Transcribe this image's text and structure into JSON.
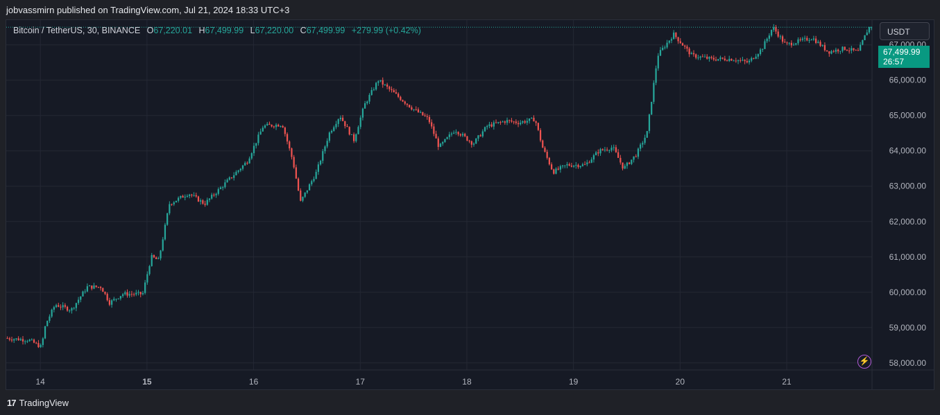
{
  "header": {
    "published_text": "jobvassmirn published on TradingView.com, Jul 21, 2024 18:33 UTC+3"
  },
  "legend": {
    "symbol": "Bitcoin / TetherUS, 30, BINANCE",
    "open_label": "O",
    "open": "67,220.01",
    "high_label": "H",
    "high": "67,499.99",
    "low_label": "L",
    "low": "67,220.00",
    "close_label": "C",
    "close": "67,499.99",
    "change": "+279.99 (+0.42%)"
  },
  "currency_button": "USDT",
  "price_tag": {
    "price": "67,499.99",
    "countdown": "26:57"
  },
  "footer": {
    "brand": "TradingView",
    "logo_glyph": "17"
  },
  "colors": {
    "up": "#26a69a",
    "down": "#ef5350",
    "background": "#161a25",
    "grid": "#242834",
    "price_tag": "#089981"
  },
  "icons": {
    "alert": "lightning-bolt-icon",
    "logo": "tradingview-logo-icon"
  },
  "chart_data": {
    "type": "candlestick",
    "title": "Bitcoin / TetherUS, 30, BINANCE",
    "ylim": [
      57800,
      67700
    ],
    "xlim": [
      13.68,
      21.8
    ],
    "y_ticks": [
      58000,
      59000,
      60000,
      61000,
      62000,
      63000,
      64000,
      65000,
      66000,
      67000
    ],
    "y_tick_labels": [
      "58,000.00",
      "59,000.00",
      "60,000.00",
      "61,000.00",
      "62,000.00",
      "63,000.00",
      "64,000.00",
      "65,000.00",
      "66,000.00",
      "67,000.00"
    ],
    "x_ticks": [
      14,
      15,
      16,
      17,
      18,
      19,
      20,
      21
    ],
    "x_tick_labels": [
      "14",
      "15",
      "16",
      "17",
      "18",
      "19",
      "20",
      "21"
    ],
    "bold_x_tick": "15",
    "last_price": 67499.99,
    "price_path": [
      [
        13.68,
        58700
      ],
      [
        13.9,
        58650
      ],
      [
        14.02,
        58450
      ],
      [
        14.06,
        59100
      ],
      [
        14.15,
        59650
      ],
      [
        14.3,
        59500
      ],
      [
        14.45,
        60150
      ],
      [
        14.58,
        60150
      ],
      [
        14.66,
        59700
      ],
      [
        14.78,
        59950
      ],
      [
        14.97,
        59950
      ],
      [
        15.05,
        61000
      ],
      [
        15.12,
        60900
      ],
      [
        15.22,
        62500
      ],
      [
        15.4,
        62800
      ],
      [
        15.55,
        62500
      ],
      [
        15.7,
        62950
      ],
      [
        15.95,
        63700
      ],
      [
        16.1,
        64700
      ],
      [
        16.28,
        64750
      ],
      [
        16.38,
        63700
      ],
      [
        16.45,
        62550
      ],
      [
        16.6,
        63400
      ],
      [
        16.72,
        64500
      ],
      [
        16.82,
        65000
      ],
      [
        16.95,
        64300
      ],
      [
        17.05,
        65300
      ],
      [
        17.18,
        66000
      ],
      [
        17.3,
        65700
      ],
      [
        17.5,
        65200
      ],
      [
        17.65,
        64900
      ],
      [
        17.75,
        64100
      ],
      [
        17.9,
        64600
      ],
      [
        18.07,
        64200
      ],
      [
        18.2,
        64700
      ],
      [
        18.38,
        64850
      ],
      [
        18.5,
        64800
      ],
      [
        18.65,
        64900
      ],
      [
        18.72,
        64100
      ],
      [
        18.82,
        63400
      ],
      [
        18.95,
        63600
      ],
      [
        19.12,
        63600
      ],
      [
        19.25,
        64000
      ],
      [
        19.38,
        64100
      ],
      [
        19.48,
        63500
      ],
      [
        19.6,
        63900
      ],
      [
        19.7,
        64500
      ],
      [
        19.8,
        66700
      ],
      [
        19.95,
        67300
      ],
      [
        20.12,
        66700
      ],
      [
        20.3,
        66600
      ],
      [
        20.5,
        66600
      ],
      [
        20.65,
        66500
      ],
      [
        20.78,
        66900
      ],
      [
        20.88,
        67500
      ],
      [
        21.0,
        67000
      ],
      [
        21.25,
        67200
      ],
      [
        21.4,
        66800
      ],
      [
        21.55,
        66900
      ],
      [
        21.68,
        66800
      ],
      [
        21.78,
        67500
      ]
    ]
  }
}
